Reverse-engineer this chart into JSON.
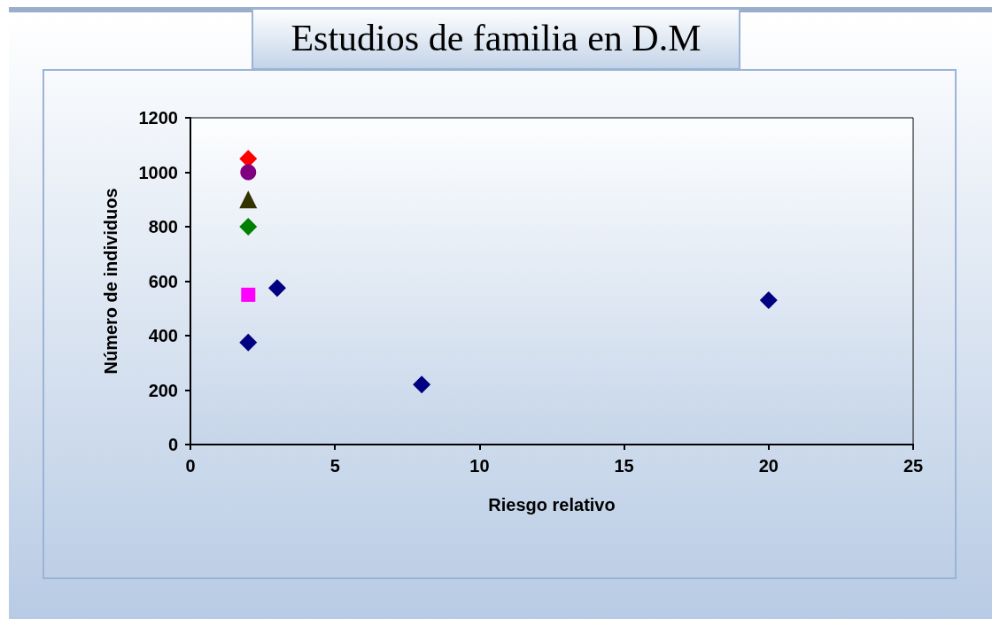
{
  "chart_data": {
    "type": "scatter",
    "title": "Estudios de familia en D.M",
    "xlabel": "Riesgo relativo",
    "ylabel": "Número de individuos",
    "xlim": [
      0,
      25
    ],
    "xticks": [
      0,
      5,
      10,
      15,
      20,
      25
    ],
    "ylim": [
      0,
      1200
    ],
    "yticks": [
      0,
      200,
      400,
      600,
      800,
      1000,
      1200
    ],
    "grid": false,
    "series": [
      {
        "color": "#000080",
        "marker": "diamond",
        "x": [
          2,
          3,
          8,
          20
        ],
        "values": [
          375,
          575,
          220,
          530
        ]
      },
      {
        "color": "#ff0000",
        "marker": "diamond",
        "x": [
          2
        ],
        "values": [
          1050
        ]
      },
      {
        "color": "#800080",
        "marker": "circle",
        "x": [
          2
        ],
        "values": [
          1000
        ]
      },
      {
        "color": "#333300",
        "marker": "triangle",
        "x": [
          2
        ],
        "values": [
          900
        ]
      },
      {
        "color": "#008000",
        "marker": "diamond",
        "x": [
          2
        ],
        "values": [
          800
        ]
      },
      {
        "color": "#ff00ff",
        "marker": "square",
        "x": [
          2
        ],
        "values": [
          550
        ]
      }
    ]
  }
}
